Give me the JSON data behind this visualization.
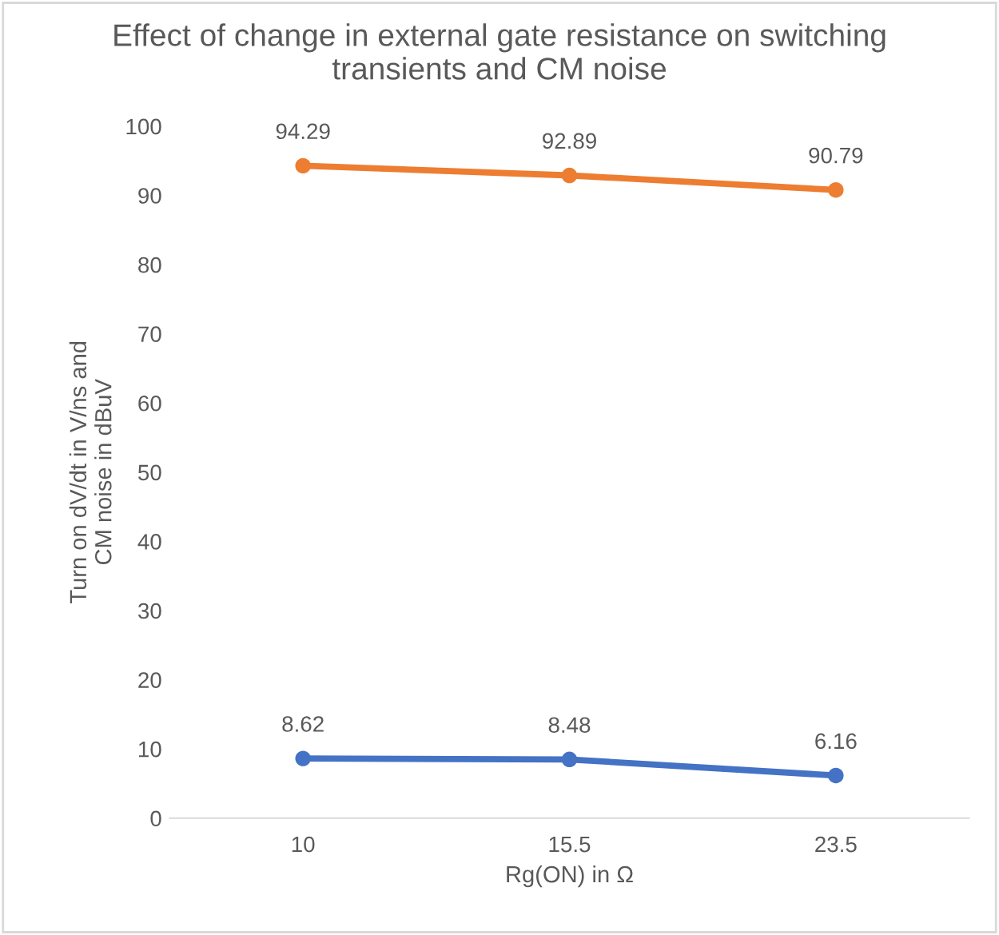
{
  "chart_data": {
    "type": "line",
    "title": "Effect of change in external gate resistance on switching\ntransients and CM noise",
    "xlabel": "Rg(ON) in Ω",
    "ylabel": "Turn on dV/dt in V/ns and\nCM noise in dBuV",
    "categories": [
      "10",
      "15.5",
      "23.5"
    ],
    "series": [
      {
        "color": "#4472c4",
        "values": [
          8.62,
          8.48,
          6.16
        ]
      },
      {
        "color": "#ed7d31",
        "values": [
          94.29,
          92.89,
          90.79
        ]
      }
    ],
    "ylim": [
      0,
      100
    ],
    "yticks": [
      0,
      10,
      20,
      30,
      40,
      50,
      60,
      70,
      80,
      90,
      100
    ],
    "data_labels": true,
    "marker": "circle",
    "line_style": "solid",
    "grid": false,
    "legend": false
  }
}
